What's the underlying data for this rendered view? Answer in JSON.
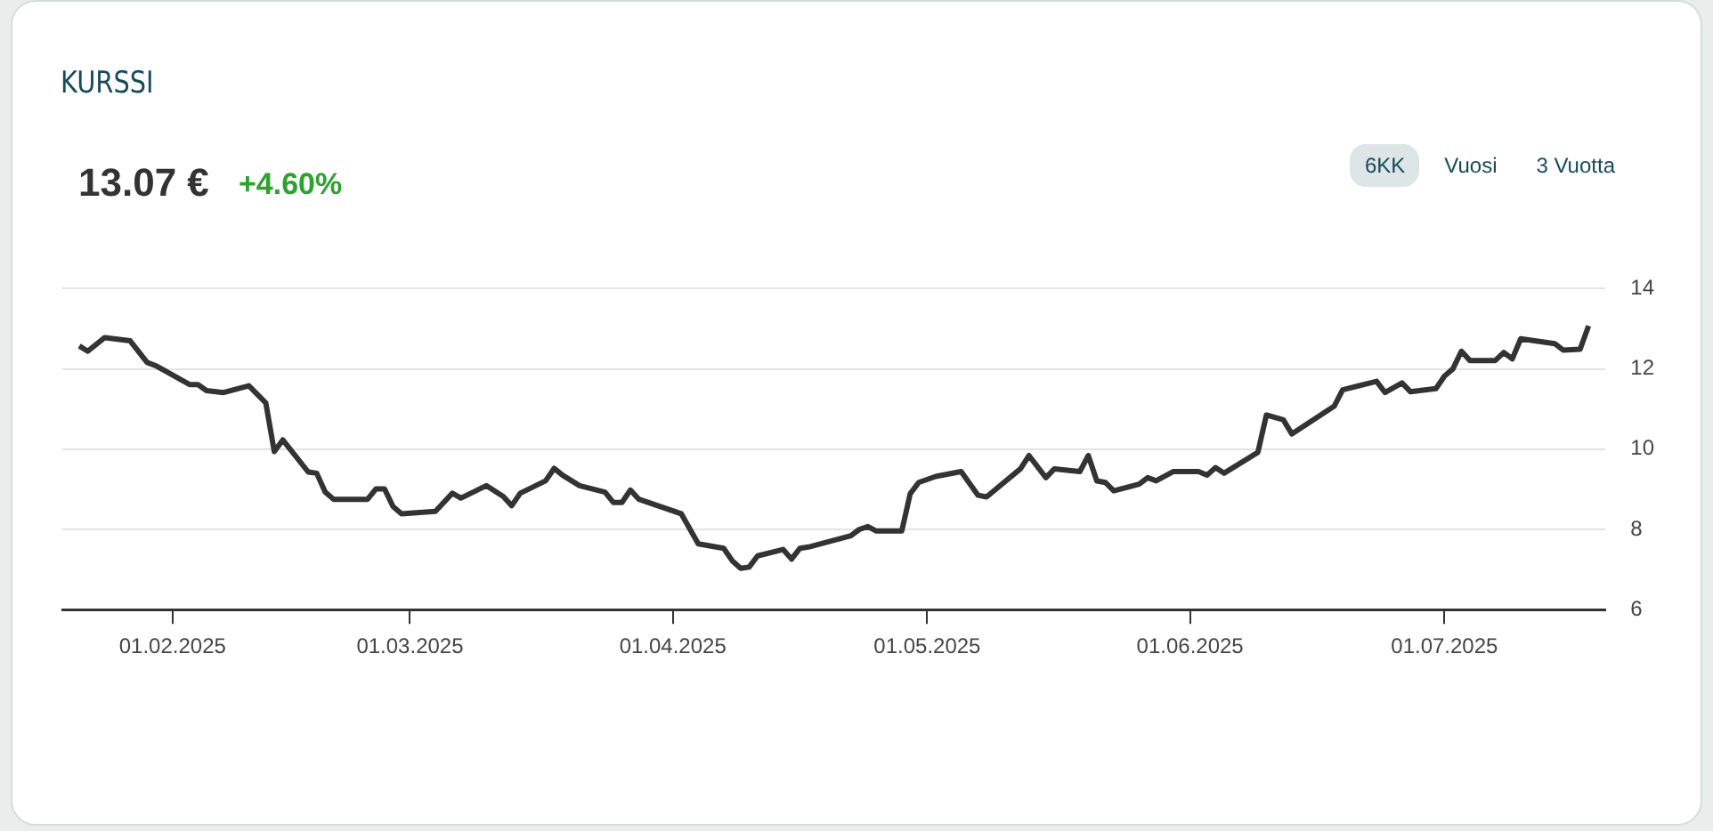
{
  "chart_data": {
    "type": "line",
    "title": "KURSSI",
    "subtitle": "13.07 €",
    "annotations": [
      "+4.60%",
      "6KK",
      "Vuosi",
      "3 Vuotta"
    ],
    "x": [
      "2025-01-21",
      "2025-01-22",
      "2025-01-24",
      "2025-01-27",
      "2025-01-29",
      "2025-01-30",
      "2025-02-03",
      "2025-02-04",
      "2025-02-05",
      "2025-02-07",
      "2025-02-10",
      "2025-02-12",
      "2025-02-13",
      "2025-02-14",
      "2025-02-17",
      "2025-02-18",
      "2025-02-19",
      "2025-02-20",
      "2025-02-24",
      "2025-02-25",
      "2025-02-26",
      "2025-02-27",
      "2025-02-28",
      "2025-03-04",
      "2025-03-06",
      "2025-03-07",
      "2025-03-10",
      "2025-03-12",
      "2025-03-13",
      "2025-03-14",
      "2025-03-17",
      "2025-03-18",
      "2025-03-19",
      "2025-03-21",
      "2025-03-24",
      "2025-03-25",
      "2025-03-26",
      "2025-03-27",
      "2025-03-28",
      "2025-04-02",
      "2025-04-04",
      "2025-04-07",
      "2025-04-08",
      "2025-04-09",
      "2025-04-10",
      "2025-04-11",
      "2025-04-14",
      "2025-04-15",
      "2025-04-16",
      "2025-04-17",
      "2025-04-22",
      "2025-04-23",
      "2025-04-24",
      "2025-04-25",
      "2025-04-28",
      "2025-04-29",
      "2025-04-30",
      "2025-05-02",
      "2025-05-05",
      "2025-05-07",
      "2025-05-08",
      "2025-05-12",
      "2025-05-13",
      "2025-05-15",
      "2025-05-16",
      "2025-05-19",
      "2025-05-20",
      "2025-05-21",
      "2025-05-22",
      "2025-05-23",
      "2025-05-26",
      "2025-05-27",
      "2025-05-28",
      "2025-05-30",
      "2025-06-02",
      "2025-06-03",
      "2025-06-04",
      "2025-06-05",
      "2025-06-09",
      "2025-06-10",
      "2025-06-12",
      "2025-06-13",
      "2025-06-18",
      "2025-06-19",
      "2025-06-23",
      "2025-06-24",
      "2025-06-26",
      "2025-06-27",
      "2025-06-30",
      "2025-07-01",
      "2025-07-02",
      "2025-07-03",
      "2025-07-04",
      "2025-07-07",
      "2025-07-08",
      "2025-07-09",
      "2025-07-10",
      "2025-07-14",
      "2025-07-15",
      "2025-07-17",
      "2025-07-18"
    ],
    "series": [
      {
        "color": "#333333",
        "values": [
          12.57,
          12.44,
          12.78,
          12.7,
          12.16,
          12.08,
          11.61,
          11.61,
          11.46,
          11.41,
          11.58,
          11.15,
          9.94,
          10.23,
          9.43,
          9.4,
          8.93,
          8.75,
          8.75,
          9.01,
          9.01,
          8.57,
          8.39,
          8.45,
          8.9,
          8.78,
          9.09,
          8.82,
          8.59,
          8.9,
          9.21,
          9.52,
          9.35,
          9.09,
          8.93,
          8.67,
          8.67,
          8.98,
          8.75,
          8.39,
          7.64,
          7.53,
          7.22,
          7.03,
          7.06,
          7.34,
          7.5,
          7.26,
          7.53,
          7.56,
          7.84,
          8.0,
          8.07,
          7.96,
          7.96,
          8.89,
          9.17,
          9.32,
          9.44,
          8.85,
          8.81,
          9.51,
          9.84,
          9.29,
          9.51,
          9.44,
          9.84,
          9.21,
          9.17,
          8.96,
          9.13,
          9.29,
          9.21,
          9.44,
          9.44,
          9.35,
          9.54,
          9.4,
          9.92,
          10.85,
          10.73,
          10.38,
          11.07,
          11.48,
          11.69,
          11.41,
          11.65,
          11.43,
          11.51,
          11.82,
          12.0,
          12.44,
          12.21,
          12.21,
          12.41,
          12.25,
          12.75,
          12.63,
          12.47,
          12.49,
          13.07
        ]
      }
    ],
    "xlim": [
      "2025-01-19",
      "2025-07-20"
    ],
    "xticks": [
      {
        "value": "2025-02-01",
        "label": "01.02.2025"
      },
      {
        "value": "2025-03-01",
        "label": "01.03.2025"
      },
      {
        "value": "2025-04-01",
        "label": "01.04.2025"
      },
      {
        "value": "2025-05-01",
        "label": "01.05.2025"
      },
      {
        "value": "2025-06-01",
        "label": "01.06.2025"
      },
      {
        "value": "2025-07-01",
        "label": "01.07.2025"
      }
    ],
    "ylim": [
      6,
      14
    ],
    "yticks": [
      6,
      8,
      10,
      12,
      14
    ],
    "grid": "y",
    "legend": false,
    "marker": "none",
    "line_style": "solid"
  }
}
